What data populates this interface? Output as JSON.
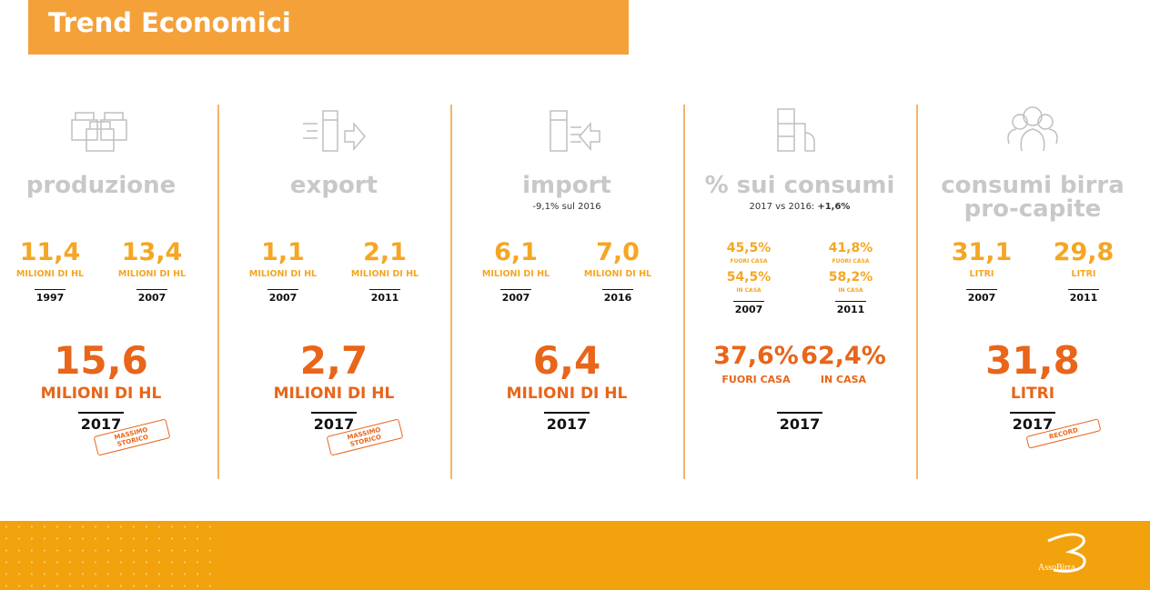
{
  "header": {
    "title": "Trend Economici"
  },
  "columns": [
    {
      "title": "produzione",
      "left": {
        "value": "11,4",
        "unit": "MILIONI DI HL",
        "year": "1997"
      },
      "right": {
        "value": "13,4",
        "unit": "MILIONI DI HL",
        "year": "2007"
      },
      "total": {
        "value": "15,6",
        "unit": "MILIONI DI HL",
        "year": "2017"
      },
      "badge": "MASSIMO STORICO"
    },
    {
      "title": "export",
      "left": {
        "value": "1,1",
        "unit": "MILIONI DI HL",
        "year": "2007"
      },
      "right": {
        "value": "2,1",
        "unit": "MILIONI DI HL",
        "year": "2011"
      },
      "total": {
        "value": "2,7",
        "unit": "MILIONI DI HL",
        "year": "2017"
      },
      "badge": "MASSIMO STORICO"
    },
    {
      "title": "import",
      "subtitle": "-9,1% sul 2016",
      "left": {
        "value": "6,1",
        "unit": "MILIONI DI HL",
        "year": "2007"
      },
      "right": {
        "value": "7,0",
        "unit": "MILIONI DI HL",
        "year": "2016"
      },
      "total": {
        "value": "6,4",
        "unit": "MILIONI DI HL",
        "year": "2017"
      }
    },
    {
      "title": "% sui consumi",
      "subtitle": "2017 vs 2016:",
      "subtitle_highlight": "+1,6%",
      "left": {
        "value": "45,5%",
        "label": "FUORI CASA",
        "value2": "54,5%",
        "label2": "IN CASA",
        "year": "2007"
      },
      "right": {
        "value": "41,8%",
        "label": "FUORI CASA",
        "value2": "58,2%",
        "label2": "IN CASA",
        "year": "2011"
      },
      "total": {
        "value": "37,6%",
        "label": "FUORI CASA",
        "value2": "62,4%",
        "label2": "IN CASA",
        "year": "2017"
      }
    },
    {
      "title": "consumi birra pro-capite",
      "left": {
        "value": "31,1",
        "unit": "LITRI",
        "year": "2007"
      },
      "right": {
        "value": "29,8",
        "unit": "LITRI",
        "year": "2011"
      },
      "total": {
        "value": "31,8",
        "unit": "LITRI",
        "year": "2017"
      },
      "badge": "RECORD"
    }
  ],
  "footer": {
    "logo": "AssoBirra"
  }
}
